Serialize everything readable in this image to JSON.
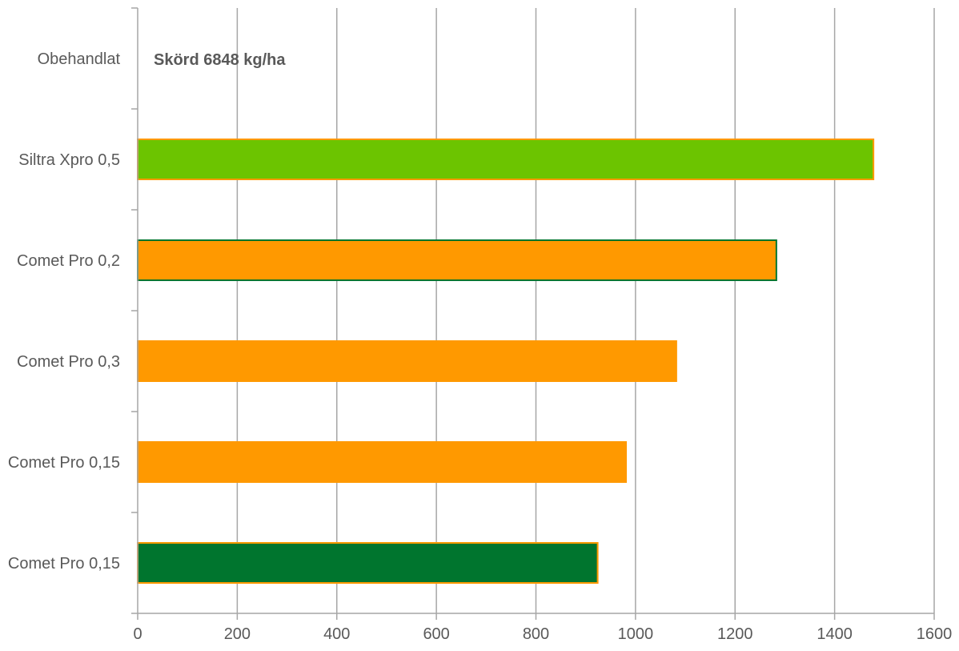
{
  "chart_data": {
    "type": "bar",
    "orientation": "horizontal",
    "categories": [
      "Obehandlat",
      "Siltra Xpro 0,5",
      "Comet Pro 0,2",
      "Comet Pro 0,3",
      "Comet Pro 0,15",
      "Comet Pro 0,15"
    ],
    "values": [
      0,
      1478,
      1283,
      1082,
      981,
      924
    ],
    "bar_colors": [
      "#ffffff",
      "#6cc400",
      "#ff9900",
      "#ff9900",
      "#ff9900",
      "#00752e"
    ],
    "bar_edge_colors": [
      "#ffffff",
      "#ff9900",
      "#00752e",
      "#ff9900",
      "#ff9900",
      "#ff9900"
    ],
    "x_ticks": [
      "0",
      "200",
      "400",
      "600",
      "800",
      "1000",
      "1200",
      "1400",
      "1600"
    ],
    "xlim": [
      0,
      1600
    ],
    "grid": true,
    "annotation": "Skörd 6848 kg/ha",
    "title": "",
    "xlabel": "",
    "ylabel": ""
  }
}
